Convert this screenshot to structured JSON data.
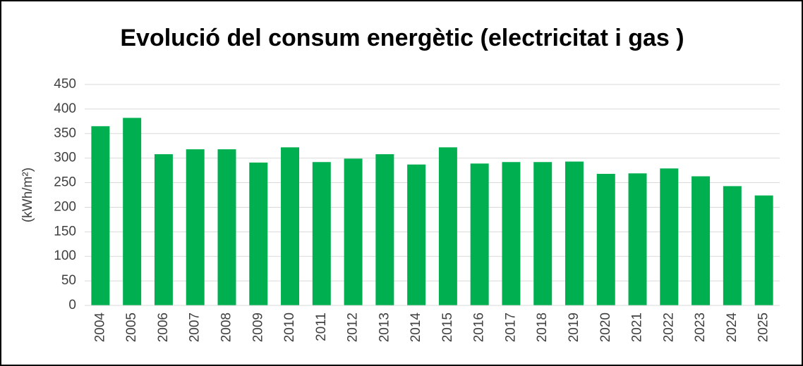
{
  "chart_data": {
    "type": "bar",
    "title": "Evolució del consum energètic (electricitat i gas )",
    "y_label": "(kWh/m²)",
    "categories": [
      "2004",
      "2005",
      "2006",
      "2007",
      "2008",
      "2009",
      "2010",
      "2011",
      "2012",
      "2013",
      "2014",
      "2015",
      "2016",
      "2017",
      "2018",
      "2019",
      "2020",
      "2021",
      "2022",
      "2023",
      "2024",
      "2025"
    ],
    "values": [
      365,
      382,
      308,
      318,
      318,
      291,
      322,
      292,
      299,
      308,
      287,
      322,
      289,
      292,
      292,
      293,
      268,
      269,
      279,
      263,
      243,
      224
    ],
    "color": "#00b050",
    "ylim": [
      0,
      450
    ],
    "yticks": [
      0,
      50,
      100,
      150,
      200,
      250,
      300,
      350,
      400,
      450
    ],
    "grid": true
  }
}
